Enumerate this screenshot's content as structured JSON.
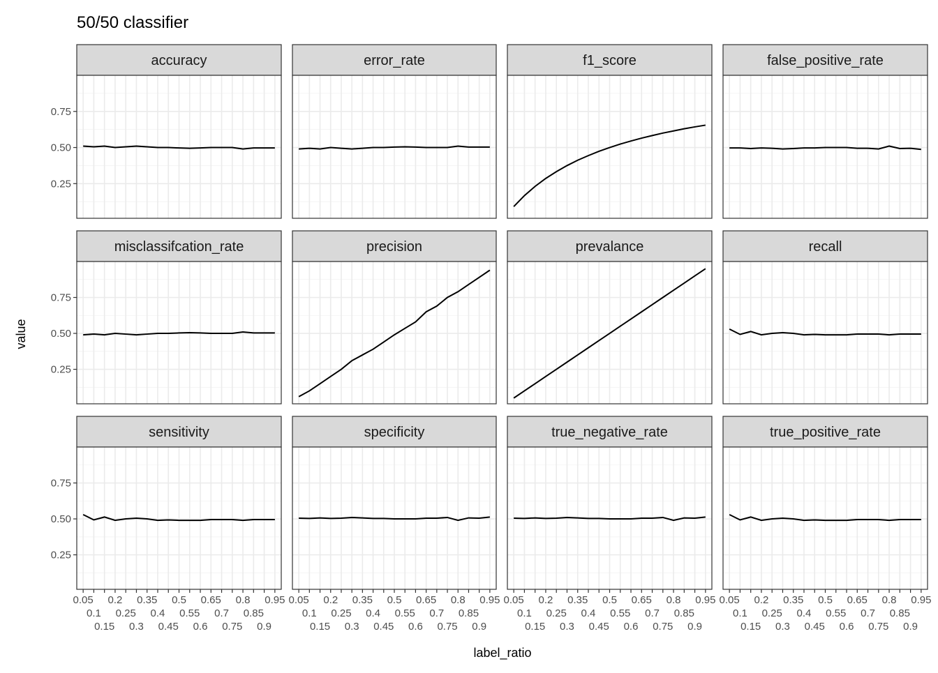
{
  "chart_data": {
    "type": "line",
    "title": "50/50 classifier",
    "xlabel": "label_ratio",
    "ylabel": "value",
    "x": [
      0.05,
      0.1,
      0.15,
      0.2,
      0.25,
      0.3,
      0.35,
      0.4,
      0.45,
      0.5,
      0.55,
      0.6,
      0.65,
      0.7,
      0.75,
      0.8,
      0.85,
      0.9,
      0.95
    ],
    "x_tick_labels": [
      "0.05",
      "0.1",
      "0.15",
      "0.2",
      "0.25",
      "0.3",
      "0.35",
      "0.4",
      "0.45",
      "0.5",
      "0.55",
      "0.6",
      "0.65",
      "0.7",
      "0.75",
      "0.8",
      "0.85",
      "0.9",
      "0.95"
    ],
    "y_ticks": [
      0.25,
      0.5,
      0.75
    ],
    "y_tick_labels": [
      "0.25",
      "0.50",
      "0.75"
    ],
    "ylim": [
      0.01,
      1.0
    ],
    "grid": true,
    "line_color": "#000000",
    "strip_color": "#d9d9d9",
    "facets": [
      {
        "name": "accuracy",
        "values": [
          0.51,
          0.505,
          0.51,
          0.5,
          0.505,
          0.51,
          0.505,
          0.5,
          0.5,
          0.497,
          0.495,
          0.497,
          0.5,
          0.5,
          0.5,
          0.49,
          0.497,
          0.497,
          0.497
        ]
      },
      {
        "name": "error_rate",
        "values": [
          0.49,
          0.495,
          0.49,
          0.5,
          0.495,
          0.49,
          0.495,
          0.5,
          0.5,
          0.503,
          0.505,
          0.503,
          0.5,
          0.5,
          0.5,
          0.51,
          0.503,
          0.503,
          0.503
        ]
      },
      {
        "name": "f1_score",
        "values": [
          0.091,
          0.167,
          0.231,
          0.286,
          0.333,
          0.375,
          0.412,
          0.444,
          0.474,
          0.5,
          0.524,
          0.545,
          0.565,
          0.583,
          0.6,
          0.615,
          0.63,
          0.643,
          0.655
        ]
      },
      {
        "name": "false_positive_rate",
        "values": [
          0.497,
          0.497,
          0.493,
          0.497,
          0.495,
          0.49,
          0.493,
          0.497,
          0.497,
          0.5,
          0.5,
          0.5,
          0.495,
          0.495,
          0.49,
          0.51,
          0.493,
          0.495,
          0.487
        ]
      },
      {
        "name": "misclassifcation_rate",
        "values": [
          0.49,
          0.495,
          0.49,
          0.5,
          0.495,
          0.49,
          0.495,
          0.5,
          0.5,
          0.503,
          0.505,
          0.503,
          0.5,
          0.5,
          0.5,
          0.51,
          0.503,
          0.503,
          0.503
        ]
      },
      {
        "name": "precision",
        "values": [
          0.06,
          0.1,
          0.15,
          0.2,
          0.25,
          0.31,
          0.35,
          0.39,
          0.44,
          0.49,
          0.535,
          0.58,
          0.65,
          0.69,
          0.75,
          0.79,
          0.84,
          0.89,
          0.94
        ]
      },
      {
        "name": "prevalance",
        "values": [
          0.05,
          0.1,
          0.15,
          0.2,
          0.25,
          0.3,
          0.35,
          0.4,
          0.45,
          0.5,
          0.55,
          0.6,
          0.65,
          0.7,
          0.75,
          0.8,
          0.85,
          0.9,
          0.95
        ]
      },
      {
        "name": "recall",
        "values": [
          0.53,
          0.493,
          0.513,
          0.49,
          0.5,
          0.505,
          0.5,
          0.49,
          0.493,
          0.49,
          0.49,
          0.49,
          0.495,
          0.495,
          0.495,
          0.49,
          0.495,
          0.495,
          0.495
        ]
      },
      {
        "name": "sensitivity",
        "values": [
          0.53,
          0.493,
          0.513,
          0.49,
          0.5,
          0.505,
          0.5,
          0.49,
          0.493,
          0.49,
          0.49,
          0.49,
          0.495,
          0.495,
          0.495,
          0.49,
          0.495,
          0.495,
          0.495
        ]
      },
      {
        "name": "specificity",
        "values": [
          0.505,
          0.503,
          0.507,
          0.503,
          0.505,
          0.51,
          0.507,
          0.503,
          0.503,
          0.5,
          0.5,
          0.5,
          0.505,
          0.505,
          0.51,
          0.49,
          0.507,
          0.505,
          0.513
        ]
      },
      {
        "name": "true_negative_rate",
        "values": [
          0.505,
          0.503,
          0.507,
          0.503,
          0.505,
          0.51,
          0.507,
          0.503,
          0.503,
          0.5,
          0.5,
          0.5,
          0.505,
          0.505,
          0.51,
          0.49,
          0.507,
          0.505,
          0.513
        ]
      },
      {
        "name": "true_positive_rate",
        "values": [
          0.53,
          0.493,
          0.513,
          0.49,
          0.5,
          0.505,
          0.5,
          0.49,
          0.493,
          0.49,
          0.49,
          0.49,
          0.495,
          0.495,
          0.495,
          0.49,
          0.495,
          0.495,
          0.495
        ]
      }
    ]
  }
}
